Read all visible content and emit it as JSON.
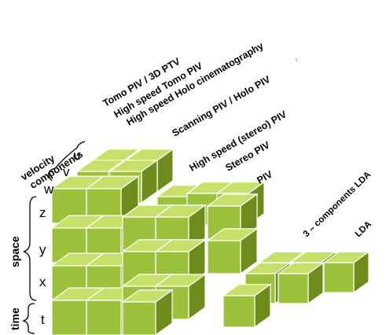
{
  "technique_labels": [
    "Tomo PIV / 3D PTV",
    "High speed Tomo PIV",
    "High speed Holo cinematography",
    "Scanning PIV / Holo PIV",
    "High speed (stereo) PIV",
    "Stereo PIV",
    "PIV",
    "3 – components LDA",
    "LDA"
  ],
  "axis_groups": {
    "velocity": "velocity components",
    "space": "space",
    "time": "time"
  },
  "axis_letters": {
    "u": "u",
    "v": "v",
    "w": "w",
    "z": "z",
    "y": "y",
    "x": "x",
    "t": "t"
  },
  "colors": {
    "cube_front": "#9cc13a",
    "cube_top": "#c6e06a",
    "cube_side": "#6e8c1c",
    "edges": "#ffffff"
  }
}
